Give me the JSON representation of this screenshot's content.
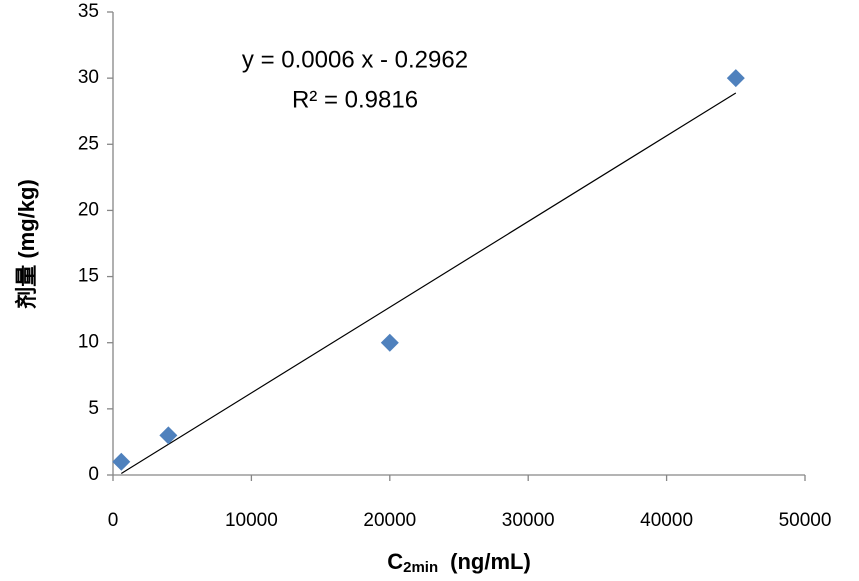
{
  "chart_data": {
    "type": "scatter",
    "annotations": [
      "y = 0.0006 x - 0.2962",
      "R² = 0.9816"
    ],
    "xlabel": {
      "main": "C",
      "sub": "2min",
      "unit": "(ng/mL)"
    },
    "ylabel": "剂量 (mg/kg)",
    "series": [
      {
        "color": "#4f81bd",
        "x": [
          600,
          4000,
          20000,
          45000
        ],
        "values": [
          1,
          3,
          10,
          30
        ]
      }
    ],
    "trendline": "linear",
    "xlim": [
      0,
      50000
    ],
    "xticks": [
      0,
      10000,
      20000,
      30000,
      40000,
      50000
    ],
    "ylim": [
      0,
      35
    ],
    "yticks": [
      0,
      5,
      10,
      15,
      20,
      25,
      30,
      35
    ]
  }
}
